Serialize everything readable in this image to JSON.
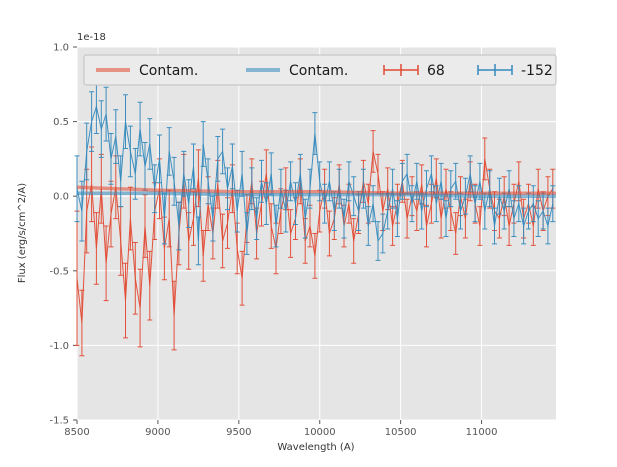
{
  "figure": {
    "background_color": "#ffffff",
    "axes_background_color": "#e5e5e5",
    "grid_color": "#ffffff",
    "tick_color": "#555555",
    "legend_background_color": "#ebebeb",
    "legend_border_color": "#bfbfbf"
  },
  "chart_data": {
    "type": "line",
    "title": "",
    "xlabel": "Wavelength (A)",
    "ylabel": "Flux (erg/s/cm^2/A)",
    "offset_text": "1e-18",
    "xlim": [
      8500,
      11460
    ],
    "ylim": [
      -1.5,
      1.0
    ],
    "xticks": [
      8500,
      9000,
      9500,
      10000,
      10500,
      11000
    ],
    "xtick_labels": [
      "8500",
      "9000",
      "9500",
      "10000",
      "10500",
      "11000"
    ],
    "yticks": [
      -1.5,
      -1.0,
      -0.5,
      0.0,
      0.5,
      1.0
    ],
    "ytick_labels": [
      "-1.5",
      "-1.0",
      "-0.5",
      "0.0",
      "0.5",
      "1.0"
    ],
    "y_unit_scale": "1e-18",
    "grid": true,
    "legend_position": "upper center horizontal",
    "series": [
      {
        "name": "contamination-model-red",
        "label": "Contam.",
        "type": "line",
        "color": "#E24A33",
        "linewidth": 3.5,
        "alpha": 0.55,
        "x": [
          8500,
          9000,
          9500,
          10000,
          10500,
          11000,
          11460
        ],
        "y": [
          0.06,
          0.04,
          0.03,
          0.03,
          0.02,
          0.02,
          0.02
        ]
      },
      {
        "name": "contamination-model-blue",
        "label": "Contam.",
        "type": "line",
        "color": "#348ABD",
        "linewidth": 3.5,
        "alpha": 0.55,
        "x": [
          8500,
          9000,
          9500,
          10000,
          10500,
          11000,
          11460
        ],
        "y": [
          0.02,
          0.02,
          0.01,
          0.01,
          0.01,
          0.0,
          0.0
        ]
      },
      {
        "name": "spectrum-68",
        "label": "68",
        "type": "errorbar",
        "color": "#E24A33",
        "linewidth": 1,
        "alpha": 0.95,
        "x_start": 8500,
        "x_step": 30,
        "y": [
          -0.55,
          -0.85,
          -0.1,
          0.08,
          -0.35,
          0.05,
          -0.45,
          -0.12,
          0.06,
          -0.3,
          -0.7,
          -0.15,
          -0.55,
          -0.75,
          -0.2,
          -0.6,
          -0.1,
          0.05,
          -0.35,
          -0.15,
          -0.8,
          -0.25,
          0.1,
          -0.3,
          -0.15,
          0.12,
          -0.4,
          -0.05,
          -0.25,
          0.08,
          -0.3,
          -0.18,
          0.05,
          -0.35,
          -0.55,
          -0.15,
          0.1,
          -0.25,
          -0.05,
          0.15,
          -0.2,
          -0.35,
          -0.1,
          0.05,
          -0.25,
          -0.15,
          0.1,
          -0.3,
          -0.2,
          -0.4,
          -0.1,
          0.05,
          -0.25,
          -0.15,
          0.08,
          -0.2,
          -0.05,
          -0.3,
          -0.12,
          0.1,
          -0.05,
          0.3,
          0.15,
          -0.1,
          0.05,
          -0.2,
          -0.05,
          0.1,
          -0.15,
          0.0,
          -0.1,
          0.08,
          -0.2,
          -0.05,
          0.12,
          -0.15,
          0.05,
          -0.1,
          -0.25,
          0.0,
          -0.15,
          0.1,
          -0.05,
          -0.2,
          0.25,
          0.05,
          -0.1,
          -0.15,
          0.0,
          -0.2,
          -0.05,
          0.1,
          -0.15,
          -0.05,
          -0.2,
          0.05,
          -0.1,
          0.0,
          0.05
        ],
        "yerr": [
          0.45,
          0.22,
          0.28,
          0.25,
          0.24,
          0.23,
          0.25,
          0.22,
          0.21,
          0.23,
          0.25,
          0.21,
          0.24,
          0.26,
          0.21,
          0.23,
          0.19,
          0.2,
          0.21,
          0.19,
          0.23,
          0.21,
          0.18,
          0.19,
          0.18,
          0.19,
          0.17,
          0.18,
          0.17,
          0.16,
          0.18,
          0.17,
          0.16,
          0.17,
          0.18,
          0.16,
          0.15,
          0.17,
          0.15,
          0.16,
          0.15,
          0.17,
          0.15,
          0.14,
          0.16,
          0.14,
          0.15,
          0.15,
          0.14,
          0.15,
          0.14,
          0.13,
          0.15,
          0.14,
          0.13,
          0.14,
          0.13,
          0.15,
          0.13,
          0.14,
          0.13,
          0.14,
          0.13,
          0.13,
          0.14,
          0.13,
          0.13,
          0.14,
          0.13,
          0.13,
          0.13,
          0.13,
          0.14,
          0.13,
          0.13,
          0.13,
          0.13,
          0.13,
          0.14,
          0.13,
          0.13,
          0.13,
          0.13,
          0.13,
          0.14,
          0.13,
          0.13,
          0.13,
          0.13,
          0.13,
          0.13,
          0.13,
          0.13,
          0.13,
          0.13,
          0.13,
          0.13,
          0.13,
          0.13
        ]
      },
      {
        "name": "spectrum-minus-152",
        "label": "-152",
        "type": "errorbar",
        "color": "#348ABD",
        "linewidth": 1,
        "alpha": 0.95,
        "x_start": 8500,
        "x_step": 30,
        "y": [
          0.05,
          -0.1,
          0.3,
          0.5,
          0.6,
          0.45,
          0.55,
          0.25,
          0.4,
          0.1,
          0.5,
          0.3,
          0.15,
          0.45,
          0.2,
          0.35,
          0.05,
          0.25,
          -0.15,
          0.3,
          0.1,
          -0.2,
          0.15,
          -0.05,
          0.2,
          -0.3,
          0.35,
          0.1,
          -0.15,
          0.25,
          0.3,
          0.05,
          0.2,
          -0.1,
          0.15,
          -0.25,
          0.05,
          -0.15,
          0.1,
          -0.05,
          0.15,
          -0.2,
          0.05,
          -0.1,
          0.1,
          -0.05,
          0.15,
          -0.15,
          0.05,
          0.42,
          0.1,
          -0.05,
          0.1,
          -0.1,
          0.05,
          -0.15,
          0.1,
          0.0,
          -0.1,
          0.05,
          -0.2,
          -0.05,
          -0.3,
          -0.25,
          -0.1,
          0.05,
          -0.15,
          0.1,
          0.15,
          -0.05,
          0.1,
          -0.1,
          0.05,
          0.15,
          -0.05,
          0.1,
          -0.15,
          0.05,
          0.1,
          -0.1,
          0.0,
          0.15,
          -0.05,
          0.1,
          -0.1,
          0.05,
          -0.2,
          0.0,
          -0.1,
          0.05,
          -0.15,
          -0.05,
          -0.2,
          -0.1,
          -0.05,
          -0.15,
          -0.1,
          -0.2,
          -0.05
        ],
        "yerr": [
          0.22,
          0.2,
          0.19,
          0.2,
          0.18,
          0.19,
          0.18,
          0.17,
          0.18,
          0.17,
          0.18,
          0.17,
          0.17,
          0.18,
          0.16,
          0.17,
          0.16,
          0.16,
          0.17,
          0.16,
          0.16,
          0.16,
          0.15,
          0.16,
          0.15,
          0.16,
          0.15,
          0.15,
          0.15,
          0.15,
          0.15,
          0.14,
          0.15,
          0.14,
          0.15,
          0.14,
          0.14,
          0.14,
          0.14,
          0.14,
          0.14,
          0.14,
          0.13,
          0.14,
          0.13,
          0.14,
          0.13,
          0.13,
          0.13,
          0.14,
          0.13,
          0.13,
          0.13,
          0.13,
          0.13,
          0.13,
          0.13,
          0.13,
          0.13,
          0.13,
          0.13,
          0.12,
          0.13,
          0.13,
          0.12,
          0.13,
          0.12,
          0.12,
          0.13,
          0.12,
          0.12,
          0.12,
          0.12,
          0.12,
          0.12,
          0.12,
          0.12,
          0.12,
          0.12,
          0.12,
          0.12,
          0.12,
          0.12,
          0.12,
          0.12,
          0.12,
          0.12,
          0.12,
          0.12,
          0.12,
          0.12,
          0.12,
          0.12,
          0.12,
          0.12,
          0.12,
          0.12,
          0.12,
          0.12
        ]
      }
    ]
  }
}
